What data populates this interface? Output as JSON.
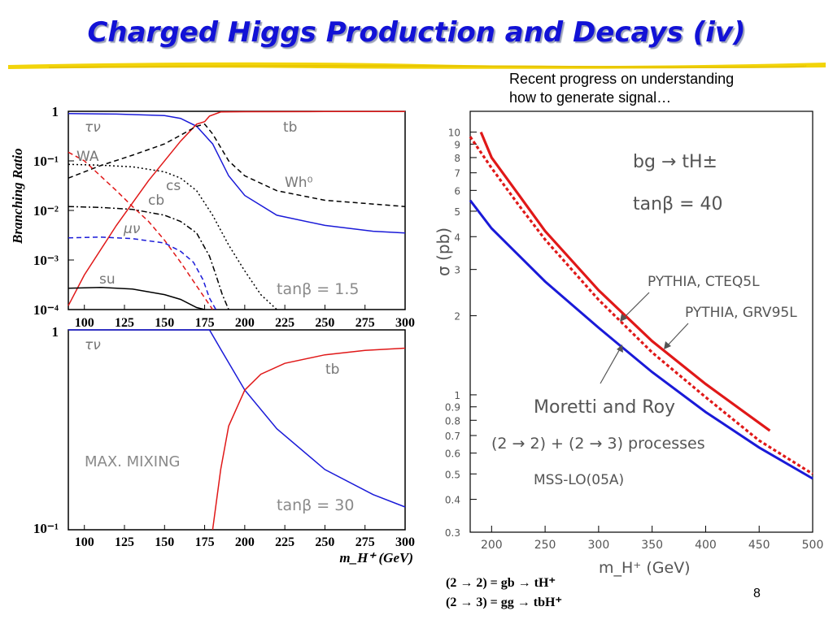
{
  "slide": {
    "title": "Charged Higgs Production and Decays (iv)",
    "note_line1": "Recent progress on understanding",
    "note_line2": "how to generate signal…",
    "equation1": "(2 → 2) = gb → tH⁺",
    "equation2": "(2 → 3) = gg → tbH⁺",
    "page_number": "8",
    "accent_color": "#1212d6",
    "underline_color": "#f0d000"
  },
  "chart_data": [
    {
      "type": "line",
      "panel": "top-left",
      "ylabel": "Branching Ratio",
      "y_scale": "log",
      "ylim": [
        0.0001,
        1
      ],
      "xlim": [
        90,
        300
      ],
      "y_ticks": [
        "1",
        "10⁻¹",
        "10⁻²",
        "10⁻³",
        "10⁻⁴"
      ],
      "x_ticks": [
        100,
        125,
        150,
        175,
        200,
        225,
        250,
        275,
        300
      ],
      "annotation": "tanβ = 1.5",
      "series": [
        {
          "name": "τν",
          "color": "#1a1ad8",
          "style": "solid",
          "x": [
            90,
            120,
            150,
            160,
            170,
            180,
            190,
            200,
            220,
            250,
            280,
            300
          ],
          "y": [
            0.9,
            0.88,
            0.82,
            0.72,
            0.5,
            0.22,
            0.05,
            0.02,
            0.008,
            0.005,
            0.0038,
            0.0035
          ]
        },
        {
          "name": "tb",
          "color": "#e01818",
          "style": "solid",
          "x": [
            90,
            100,
            120,
            140,
            160,
            170,
            175,
            178,
            185,
            200,
            250,
            300
          ],
          "y": [
            0.00012,
            0.0005,
            0.005,
            0.04,
            0.25,
            0.55,
            0.62,
            0.8,
            0.97,
            0.98,
            0.99,
            0.99
          ]
        },
        {
          "name": "Wh⁰",
          "color": "#000000",
          "style": "dashed",
          "x": [
            90,
            110,
            130,
            150,
            160,
            170,
            175,
            180,
            190,
            200,
            220,
            250,
            300
          ],
          "y": [
            0.045,
            0.08,
            0.13,
            0.22,
            0.33,
            0.5,
            0.55,
            0.35,
            0.1,
            0.05,
            0.025,
            0.016,
            0.012
          ]
        },
        {
          "name": "WA",
          "color": "#e01818",
          "style": "dashed",
          "x": [
            90,
            100,
            110,
            120,
            130,
            140,
            150,
            160,
            170,
            180
          ],
          "y": [
            0.15,
            0.1,
            0.05,
            0.025,
            0.012,
            0.006,
            0.0025,
            0.0009,
            0.0003,
            0.0001
          ]
        },
        {
          "name": "cs",
          "color": "#000000",
          "style": "dotted",
          "x": [
            90,
            110,
            130,
            150,
            160,
            170,
            180,
            190,
            200,
            210,
            220
          ],
          "y": [
            0.085,
            0.082,
            0.076,
            0.06,
            0.045,
            0.025,
            0.008,
            0.002,
            0.0006,
            0.0002,
            0.0001
          ]
        },
        {
          "name": "cb",
          "color": "#000000",
          "style": "dashdot",
          "x": [
            90,
            110,
            130,
            150,
            160,
            170,
            178,
            182,
            186,
            190
          ],
          "y": [
            0.012,
            0.0115,
            0.0105,
            0.008,
            0.006,
            0.0035,
            0.0012,
            0.0005,
            0.0002,
            0.0001
          ]
        },
        {
          "name": "μν",
          "color": "#1a1ad8",
          "style": "dashed",
          "x": [
            90,
            110,
            130,
            150,
            160,
            168,
            174,
            178,
            182
          ],
          "y": [
            0.0028,
            0.0029,
            0.0027,
            0.0022,
            0.0015,
            0.0009,
            0.0004,
            0.00017,
            0.0001
          ]
        },
        {
          "name": "su",
          "color": "#000000",
          "style": "solid",
          "x": [
            90,
            110,
            130,
            150,
            160,
            170,
            175
          ],
          "y": [
            0.00027,
            0.00028,
            0.00026,
            0.0002,
            0.00016,
            0.00011,
            0.0001
          ]
        }
      ]
    },
    {
      "type": "line",
      "panel": "bottom-left",
      "y_scale": "log",
      "ylim": [
        0.1,
        1
      ],
      "xlim": [
        90,
        300
      ],
      "y_ticks": [
        "1",
        "10⁻¹"
      ],
      "x_ticks": [
        100,
        125,
        150,
        175,
        200,
        225,
        250,
        275,
        300
      ],
      "xlabel": "m_H⁺ (GeV)",
      "annotations": [
        "MAX. MIXING",
        "tanβ = 30"
      ],
      "series": [
        {
          "name": "τν",
          "color": "#1a1ad8",
          "style": "solid",
          "x": [
            90,
            150,
            178,
            185,
            200,
            220,
            250,
            280,
            300
          ],
          "y": [
            1,
            1,
            1,
            0.8,
            0.5,
            0.32,
            0.2,
            0.15,
            0.13
          ]
        },
        {
          "name": "tb",
          "color": "#e01818",
          "style": "solid",
          "x": [
            180,
            185,
            190,
            200,
            210,
            225,
            250,
            275,
            300
          ],
          "y": [
            0.1,
            0.2,
            0.33,
            0.5,
            0.6,
            0.68,
            0.75,
            0.79,
            0.81
          ]
        }
      ]
    },
    {
      "type": "line",
      "panel": "right",
      "y_scale": "log",
      "ylim": [
        0.3,
        12
      ],
      "xlim": [
        180,
        500
      ],
      "x_ticks": [
        200,
        250,
        300,
        350,
        400,
        450,
        500
      ],
      "y_ticks": [
        0.3,
        0.4,
        0.5,
        0.6,
        0.7,
        0.8,
        0.9,
        1,
        2,
        3,
        4,
        5,
        6,
        7,
        8,
        9,
        10
      ],
      "xlabel": "m_H⁺ (GeV)",
      "ylabel": "σ (pb)",
      "annotations": [
        "bg → tH±",
        "tanβ = 40",
        "Moretti and Roy",
        "(2 → 2) + (2 → 3) processes",
        "MSS-LO(05A)"
      ],
      "series": [
        {
          "name": "PYTHIA, CTEQ5L",
          "color": "#e01818",
          "style": "solid",
          "x": [
            190,
            200,
            225,
            250,
            300,
            350,
            400,
            460
          ],
          "y": [
            10,
            8,
            5.8,
            4.2,
            2.5,
            1.6,
            1.1,
            0.73
          ]
        },
        {
          "name": "PYTHIA, GRV95L",
          "color": "#e01818",
          "style": "dotted",
          "x": [
            180,
            200,
            225,
            250,
            300,
            350,
            400,
            450,
            500
          ],
          "y": [
            9.6,
            7.3,
            5.3,
            3.9,
            2.3,
            1.45,
            0.98,
            0.67,
            0.5
          ]
        },
        {
          "name": "Moretti and Roy",
          "color": "#1a1ad8",
          "style": "solid",
          "x": [
            180,
            200,
            250,
            300,
            350,
            400,
            450,
            500
          ],
          "y": [
            5.5,
            4.3,
            2.7,
            1.8,
            1.22,
            0.86,
            0.63,
            0.48
          ]
        }
      ]
    }
  ]
}
